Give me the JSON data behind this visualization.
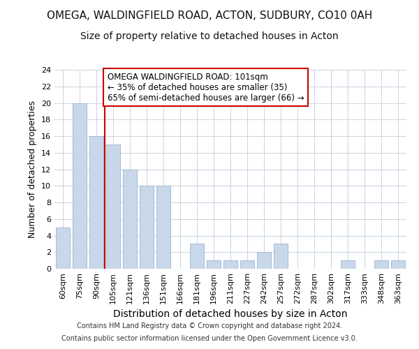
{
  "title": "OMEGA, WALDINGFIELD ROAD, ACTON, SUDBURY, CO10 0AH",
  "subtitle": "Size of property relative to detached houses in Acton",
  "xlabel": "Distribution of detached houses by size in Acton",
  "ylabel": "Number of detached properties",
  "categories": [
    "60sqm",
    "75sqm",
    "90sqm",
    "105sqm",
    "121sqm",
    "136sqm",
    "151sqm",
    "166sqm",
    "181sqm",
    "196sqm",
    "211sqm",
    "227sqm",
    "242sqm",
    "257sqm",
    "272sqm",
    "287sqm",
    "302sqm",
    "317sqm",
    "333sqm",
    "348sqm",
    "363sqm"
  ],
  "values": [
    5,
    20,
    16,
    15,
    12,
    10,
    10,
    0,
    3,
    1,
    1,
    1,
    2,
    3,
    0,
    0,
    0,
    1,
    0,
    1,
    1
  ],
  "bar_color": "#c8d8ea",
  "bar_edge_color": "#9ab4cc",
  "vline_x": 2.5,
  "vline_color": "#cc0000",
  "annotation_line1": "OMEGA WALDINGFIELD ROAD: 101sqm",
  "annotation_line2": "← 35% of detached houses are smaller (35)",
  "annotation_line3": "65% of semi-detached houses are larger (66) →",
  "annotation_box_color": "#cc0000",
  "ylim": [
    0,
    24
  ],
  "yticks": [
    0,
    2,
    4,
    6,
    8,
    10,
    12,
    14,
    16,
    18,
    20,
    22,
    24
  ],
  "bg_color": "#ffffff",
  "plot_bg_color": "#ffffff",
  "grid_color": "#c8d4e0",
  "footer_line1": "Contains HM Land Registry data © Crown copyright and database right 2024.",
  "footer_line2": "Contains public sector information licensed under the Open Government Licence v3.0.",
  "title_fontsize": 11,
  "subtitle_fontsize": 10,
  "xlabel_fontsize": 10,
  "ylabel_fontsize": 9,
  "tick_fontsize": 8,
  "annotation_fontsize": 8.5,
  "footer_fontsize": 7
}
